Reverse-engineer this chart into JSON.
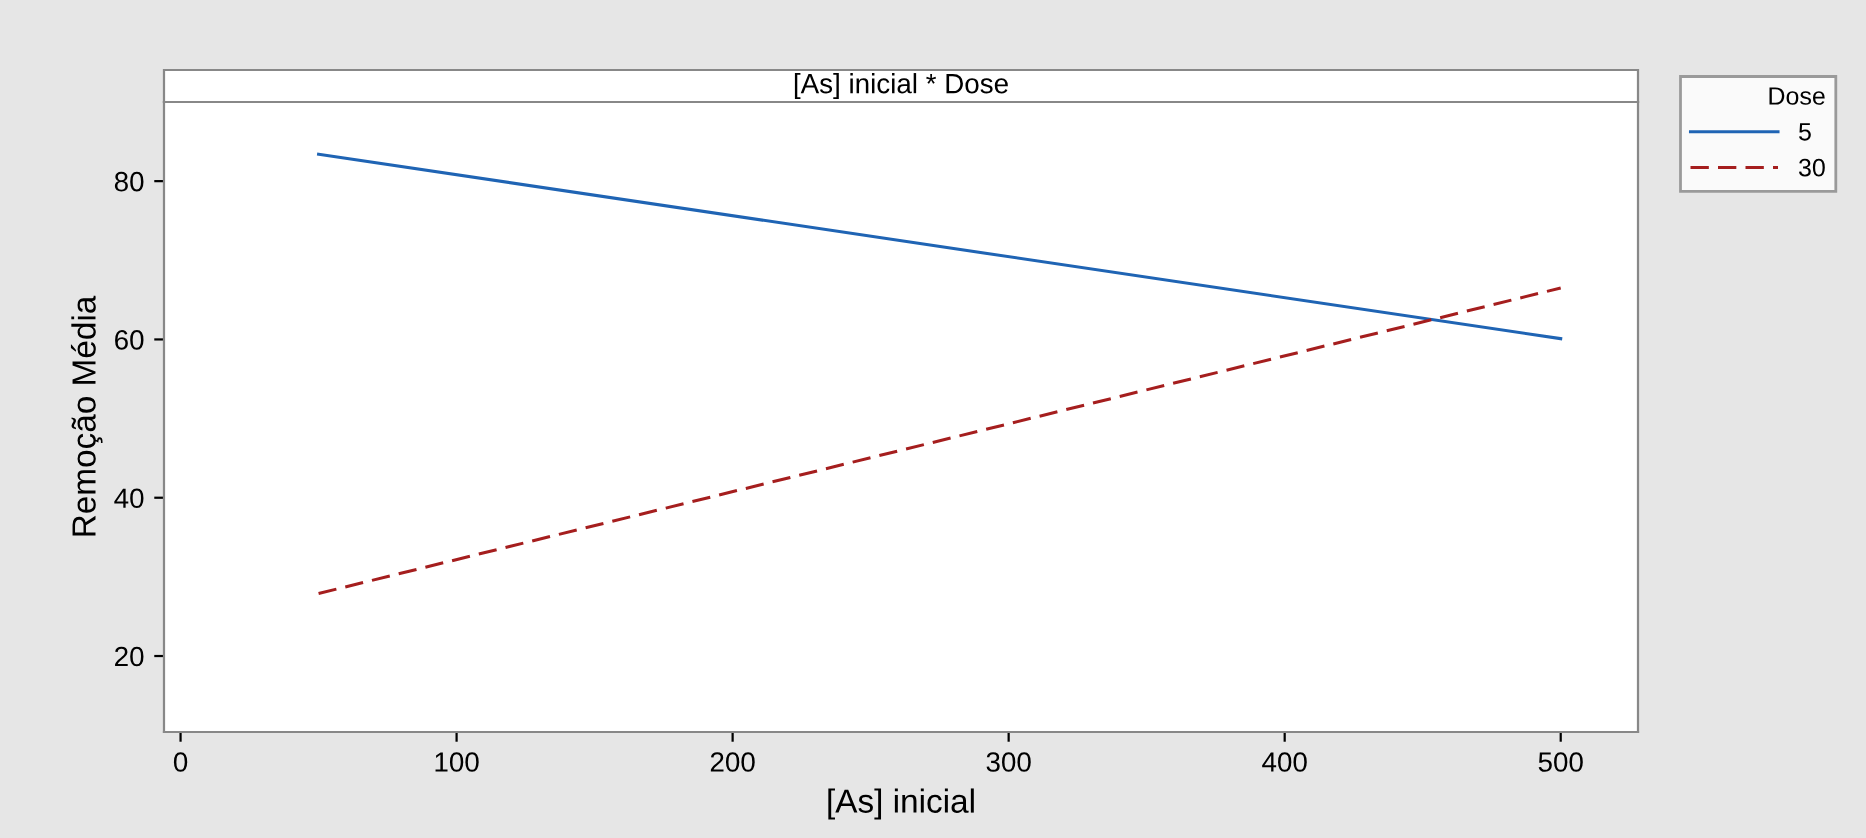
{
  "chart_data": {
    "type": "line",
    "title": "[As] inicial * Dose",
    "xlabel": "[As] inicial",
    "ylabel": "Remoção Média",
    "legend_title": "Dose",
    "x": [
      50,
      500
    ],
    "series": [
      {
        "name": "5",
        "color": "#1f64b4",
        "values": [
          83.4,
          60.1
        ],
        "line_style": "solid"
      },
      {
        "name": "30",
        "color": "#a51e1e",
        "values": [
          27.9,
          66.5
        ],
        "line_style": "dashed"
      }
    ],
    "xlim": [
      -6,
      528
    ],
    "ylim": [
      10.4,
      90
    ],
    "xticks": [
      0,
      100,
      200,
      300,
      400,
      500
    ],
    "yticks": [
      20,
      40,
      60,
      80
    ],
    "grid": false,
    "legend": "top right",
    "marker": "none"
  }
}
